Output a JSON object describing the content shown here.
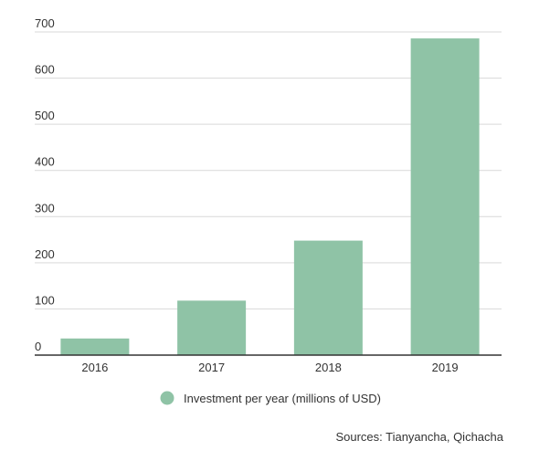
{
  "chart_data": {
    "type": "bar",
    "categories": [
      "2016",
      "2017",
      "2018",
      "2019"
    ],
    "series": [
      {
        "name": "Investment per year (millions of USD)",
        "values": [
          36,
          118,
          248,
          686
        ],
        "color": "#8fc3a6"
      }
    ],
    "ylim": [
      0,
      700
    ],
    "yticks": [
      0,
      100,
      200,
      300,
      400,
      500,
      600,
      700
    ],
    "grid": true,
    "legend_position": "bottom",
    "axis_color": "#333333",
    "grid_color": "#d9d9d9"
  },
  "source": "Sources: Tianyancha, Qichacha"
}
